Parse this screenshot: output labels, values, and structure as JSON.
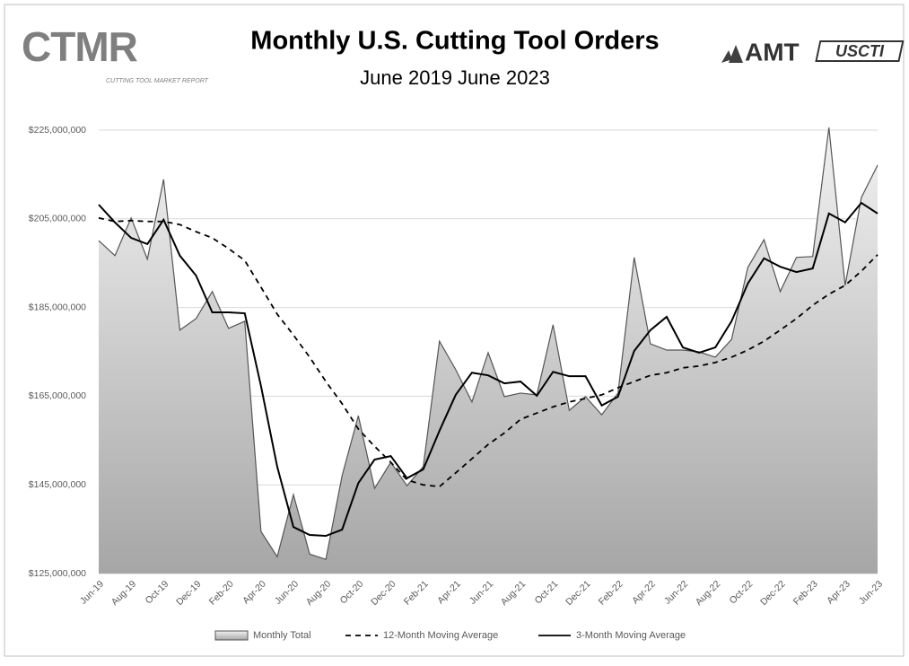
{
  "logos": {
    "left": "CTMR",
    "left_sub": "CUTTING TOOL MARKET REPORT",
    "right1": "AMT",
    "right2": "USCTI"
  },
  "chart_data": {
    "type": "area-line",
    "title": "Monthly U.S. Cutting Tool Orders",
    "subtitle": "June 2019 June 2023",
    "categories": [
      "Jun-19",
      null,
      "Aug-19",
      null,
      "Oct-19",
      null,
      "Dec-19",
      null,
      "Feb-20",
      null,
      "Apr-20",
      null,
      "Jun-20",
      null,
      "Aug-20",
      null,
      "Oct-20",
      null,
      "Dec-20",
      null,
      "Feb-21",
      null,
      "Apr-21",
      null,
      "Jun-21",
      null,
      "Aug-21",
      null,
      "Oct-21",
      null,
      "Dec-21",
      null,
      "Feb-22",
      null,
      "Apr-22",
      null,
      "Jun-22",
      null,
      "Aug-22",
      null,
      "Oct-22",
      null,
      "Dec-22",
      null,
      "Feb-23",
      null,
      "Apr-23",
      null,
      "Jun-23"
    ],
    "series": [
      {
        "name": "Monthly Total",
        "style": "area",
        "color": "#555555",
        "values": [
          200100000,
          196700000,
          205200000,
          195900000,
          213900000,
          179900000,
          182500000,
          188600000,
          180300000,
          181900000,
          134500000,
          128800000,
          142800000,
          129400000,
          128200000,
          147100000,
          160600000,
          144200000,
          150100000,
          144800000,
          149100000,
          177400000,
          171000000,
          163700000,
          174800000,
          164900000,
          165700000,
          165300000,
          181100000,
          161800000,
          164900000,
          160800000,
          165700000,
          196300000,
          176800000,
          175400000,
          175400000,
          175000000,
          173800000,
          177800000,
          194000000,
          200300000,
          188600000,
          196300000,
          196500000,
          225600000,
          190000000,
          209800000,
          217100000
        ]
      },
      {
        "name": "12-Month Moving Average",
        "style": "dashed",
        "color": "#000000",
        "values": [
          205200000,
          204400000,
          204600000,
          204400000,
          204400000,
          203700000,
          202100000,
          200700000,
          198300000,
          195600000,
          189600000,
          183500000,
          178800000,
          173800000,
          168300000,
          163300000,
          157600000,
          153700000,
          150100000,
          146100000,
          145000000,
          144600000,
          147700000,
          150900000,
          154100000,
          156700000,
          159800000,
          161200000,
          162600000,
          163700000,
          164500000,
          165300000,
          166900000,
          168300000,
          169700000,
          170300000,
          171400000,
          171800000,
          172600000,
          173800000,
          175400000,
          177400000,
          179900000,
          182500000,
          185500000,
          188000000,
          190000000,
          193200000,
          196900000
        ]
      },
      {
        "name": "3-Month Moving Average",
        "style": "solid",
        "color": "#000000",
        "values": [
          208200000,
          204200000,
          200700000,
          199300000,
          204800000,
          196700000,
          192200000,
          183900000,
          183900000,
          183700000,
          167300000,
          149100000,
          135500000,
          133700000,
          133500000,
          134900000,
          145400000,
          150700000,
          151500000,
          146500000,
          148500000,
          157200000,
          165300000,
          170300000,
          169700000,
          167900000,
          168300000,
          165100000,
          170500000,
          169500000,
          169500000,
          162900000,
          164900000,
          175200000,
          179900000,
          182900000,
          176000000,
          174800000,
          176000000,
          181900000,
          190400000,
          196100000,
          194200000,
          193000000,
          193800000,
          206200000,
          204200000,
          208600000,
          206200000
        ]
      }
    ],
    "ylim": [
      125000000,
      225000000
    ],
    "yticks": [
      {
        "value": 125000000,
        "label": "$125,000,000"
      },
      {
        "value": 145000000,
        "label": "$145,000,000"
      },
      {
        "value": 165000000,
        "label": "$165,000,000"
      },
      {
        "value": 185000000,
        "label": "$185,000,000"
      },
      {
        "value": 205000000,
        "label": "$205,000,000"
      },
      {
        "value": 225000000,
        "label": "$225,000,000"
      }
    ],
    "grid": true,
    "legend": "bottom"
  }
}
